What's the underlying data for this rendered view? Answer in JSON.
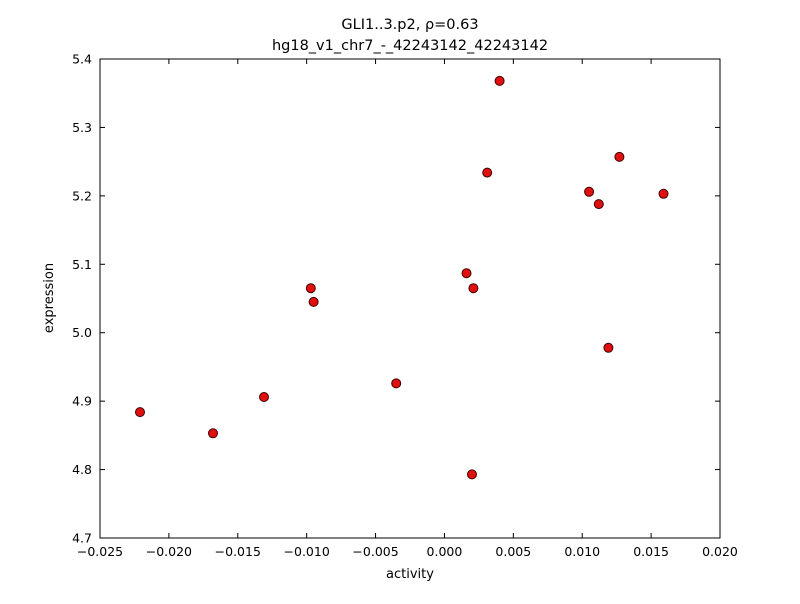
{
  "chart_data": {
    "type": "scatter",
    "title": "GLI1..3.p2, ρ=0.63",
    "subtitle": "hg18_v1_chr7_-_42243142_42243142",
    "xlabel": "activity",
    "ylabel": "expression",
    "xlim": [
      -0.025,
      0.02
    ],
    "ylim": [
      4.7,
      5.4
    ],
    "xticks": [
      -0.025,
      -0.02,
      -0.015,
      -0.01,
      -0.005,
      0.0,
      0.005,
      0.01,
      0.015,
      0.02
    ],
    "xtick_labels": [
      "−0.025",
      "−0.020",
      "−0.015",
      "−0.010",
      "−0.005",
      "0.000",
      "0.005",
      "0.010",
      "0.015",
      "0.020"
    ],
    "yticks": [
      4.7,
      4.8,
      4.9,
      5.0,
      5.1,
      5.2,
      5.3,
      5.4
    ],
    "ytick_labels": [
      "4.7",
      "4.8",
      "4.9",
      "5.0",
      "5.1",
      "5.2",
      "5.3",
      "5.4"
    ],
    "grid": false,
    "legend": null,
    "marker": {
      "shape": "circle",
      "color": "#e01010",
      "edge_color": "#400000",
      "radius": 4.5
    },
    "points": [
      [
        -0.0221,
        4.884
      ],
      [
        -0.0168,
        4.853
      ],
      [
        -0.0131,
        4.906
      ],
      [
        -0.0097,
        5.065
      ],
      [
        -0.0095,
        5.045
      ],
      [
        -0.0035,
        4.926
      ],
      [
        0.0016,
        5.087
      ],
      [
        0.0021,
        5.065
      ],
      [
        0.002,
        4.793
      ],
      [
        0.0031,
        5.234
      ],
      [
        0.004,
        5.368
      ],
      [
        0.0105,
        5.206
      ],
      [
        0.0112,
        5.188
      ],
      [
        0.0119,
        4.978
      ],
      [
        0.0127,
        5.257
      ],
      [
        0.0159,
        5.203
      ]
    ]
  }
}
